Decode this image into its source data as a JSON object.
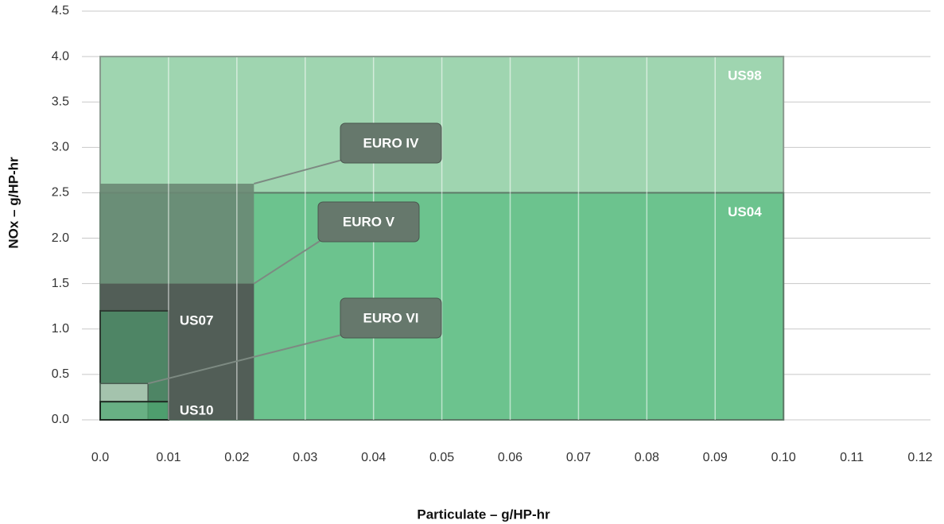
{
  "chart_data": {
    "type": "region",
    "x_label": "Particulate – g/HP-hr",
    "y_label": "NOx – g/HP-hr",
    "xlim": [
      0,
      0.12
    ],
    "ylim": [
      0,
      4.5
    ],
    "xticks": [
      {
        "value": 0,
        "label": "0.0"
      },
      0.01,
      0.02,
      0.03,
      0.04,
      0.05,
      0.06,
      0.07,
      0.08,
      0.09,
      {
        "value": 0.1,
        "label": "0.10"
      },
      0.11,
      0.12
    ],
    "yticks": [
      {
        "value": 0,
        "label": "0.0"
      },
      0.5,
      {
        "value": 1,
        "label": "1.0"
      },
      1.5,
      {
        "value": 2,
        "label": "2.0"
      },
      2.5,
      {
        "value": 3,
        "label": "3.0"
      },
      3.5,
      {
        "value": 4,
        "label": "4.0"
      },
      4.5
    ],
    "grid": true,
    "regions": [
      {
        "name": "US98",
        "pm": 0.1,
        "nox": 4.0,
        "color": "#9fd5b0"
      },
      {
        "name": "US04",
        "pm": 0.1,
        "nox": 2.5,
        "color": "#6cc38e"
      },
      {
        "name": "EURO IV",
        "pm": 0.0225,
        "nox": 2.6,
        "color": "#6a8874"
      },
      {
        "name": "EURO V",
        "pm": 0.0225,
        "nox": 1.5,
        "color": "#505a55"
      },
      {
        "name": "US07",
        "pm": 0.01,
        "nox": 1.2,
        "color": "#4e8a67"
      },
      {
        "name": "EURO VI",
        "pm": 0.007,
        "nox": 0.4,
        "color": "#a9c6b1"
      },
      {
        "name": "US10",
        "pm": 0.01,
        "nox": 0.2,
        "color": "#4fa872"
      }
    ]
  }
}
